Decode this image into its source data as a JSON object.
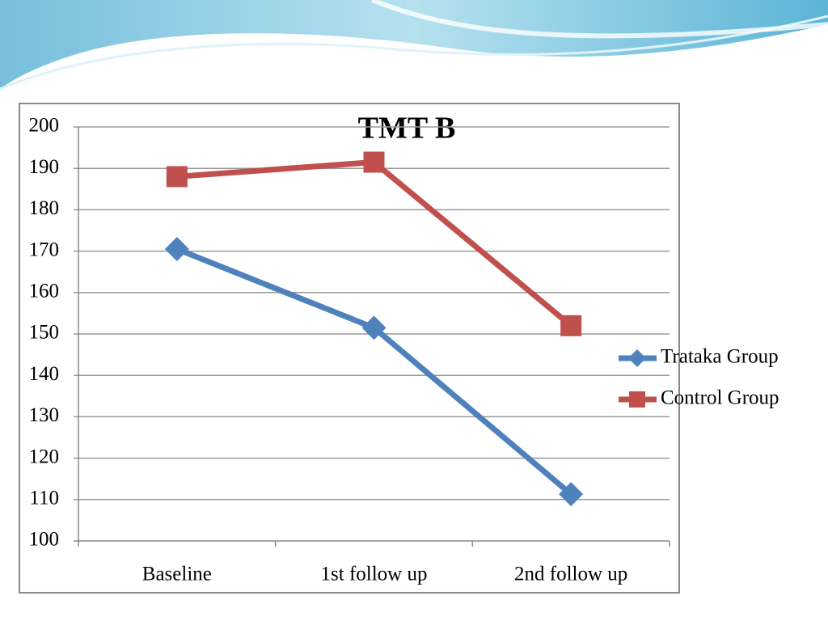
{
  "chart_data": {
    "type": "line",
    "title": "TMT B",
    "categories": [
      "Baseline",
      "1st follow up",
      "2nd follow up"
    ],
    "series": [
      {
        "name": "Trataka Group",
        "color": "#4f81bd",
        "marker": "diamond",
        "values": [
          170.5,
          151.5,
          111.3
        ]
      },
      {
        "name": "Control Group",
        "color": "#c0504d",
        "marker": "square",
        "values": [
          188,
          191.5,
          152
        ]
      }
    ],
    "ylim": [
      100,
      200
    ],
    "yticks": [
      100,
      110,
      120,
      130,
      140,
      150,
      160,
      170,
      180,
      190,
      200
    ],
    "grid": true,
    "legend": "right"
  }
}
